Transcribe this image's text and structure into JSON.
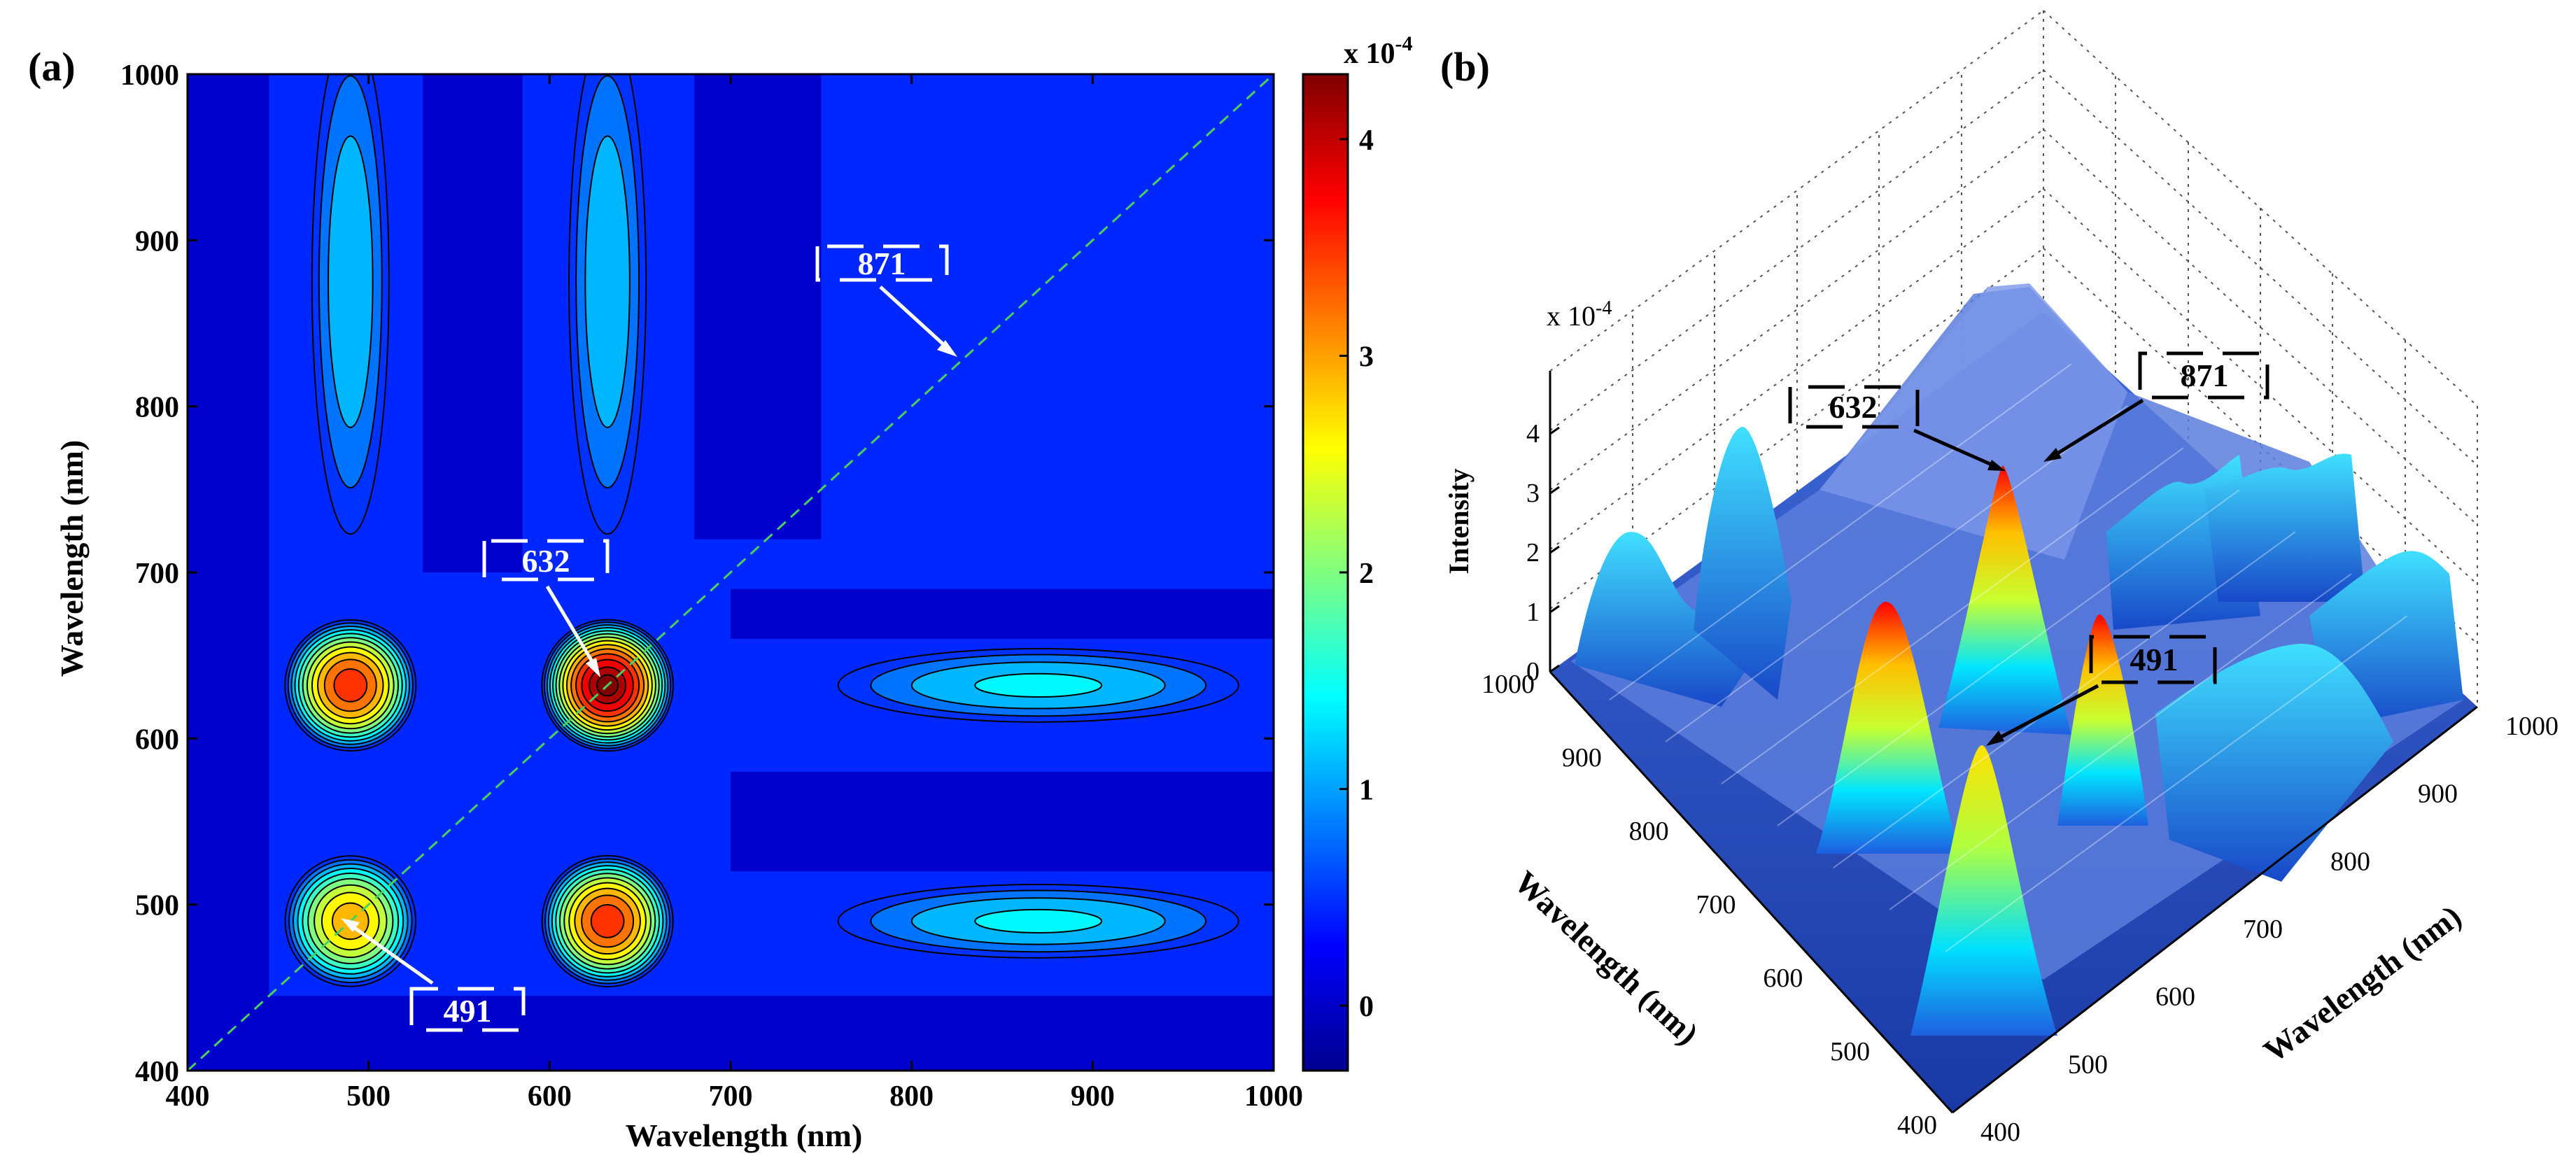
{
  "chart_data": [
    {
      "panel_label": "(a)",
      "type": "heatmap",
      "subtype": "filled-contour",
      "xlabel": "Wavelength (nm)",
      "ylabel": "Wavelength (nm)",
      "xlim": [
        400,
        1000
      ],
      "ylim": [
        400,
        1000
      ],
      "xticks": [
        400,
        500,
        600,
        700,
        800,
        900,
        1000
      ],
      "yticks": [
        400,
        500,
        600,
        700,
        800,
        900,
        1000
      ],
      "colormap": "jet",
      "colorbar": {
        "multiplier": "x 10",
        "exponent": "-4",
        "range": [
          -0.3,
          4.3
        ],
        "ticks": [
          0,
          1,
          2,
          3,
          4
        ]
      },
      "diagonal": "dashed green line y = x",
      "peaks": [
        {
          "x": 490,
          "y": 490,
          "value": 3.0
        },
        {
          "x": 490,
          "y": 632,
          "value": 3.6
        },
        {
          "x": 632,
          "y": 490,
          "value": 3.6
        },
        {
          "x": 632,
          "y": 632,
          "value": 4.3
        }
      ],
      "ridges": [
        {
          "x": 490,
          "y": 875,
          "value": 1.3
        },
        {
          "x": 632,
          "y": 875,
          "value": 1.3
        },
        {
          "x": 870,
          "y": 632,
          "value": 1.4
        },
        {
          "x": 870,
          "y": 490,
          "value": 1.4
        }
      ],
      "annotations": [
        {
          "text": "871",
          "points_to": [
            830,
            830
          ]
        },
        {
          "text": "632",
          "points_to": [
            632,
            632
          ]
        },
        {
          "text": "491",
          "points_to": [
            490,
            490
          ]
        }
      ]
    },
    {
      "panel_label": "(b)",
      "type": "surface",
      "zlabel": "Intensity",
      "xlabel": "Wavelength (nm)",
      "ylabel": "Wavelength (nm)",
      "x_ticks": [
        400,
        500,
        600,
        700,
        800,
        900,
        1000
      ],
      "y_ticks": [
        400,
        500,
        600,
        700,
        800,
        900,
        1000
      ],
      "z_ticks": [
        0,
        1,
        2,
        3,
        4
      ],
      "z_multiplier": "x 10",
      "z_exponent": "-4",
      "annotations": [
        {
          "text": "632"
        },
        {
          "text": "871"
        },
        {
          "text": "491"
        }
      ]
    }
  ]
}
